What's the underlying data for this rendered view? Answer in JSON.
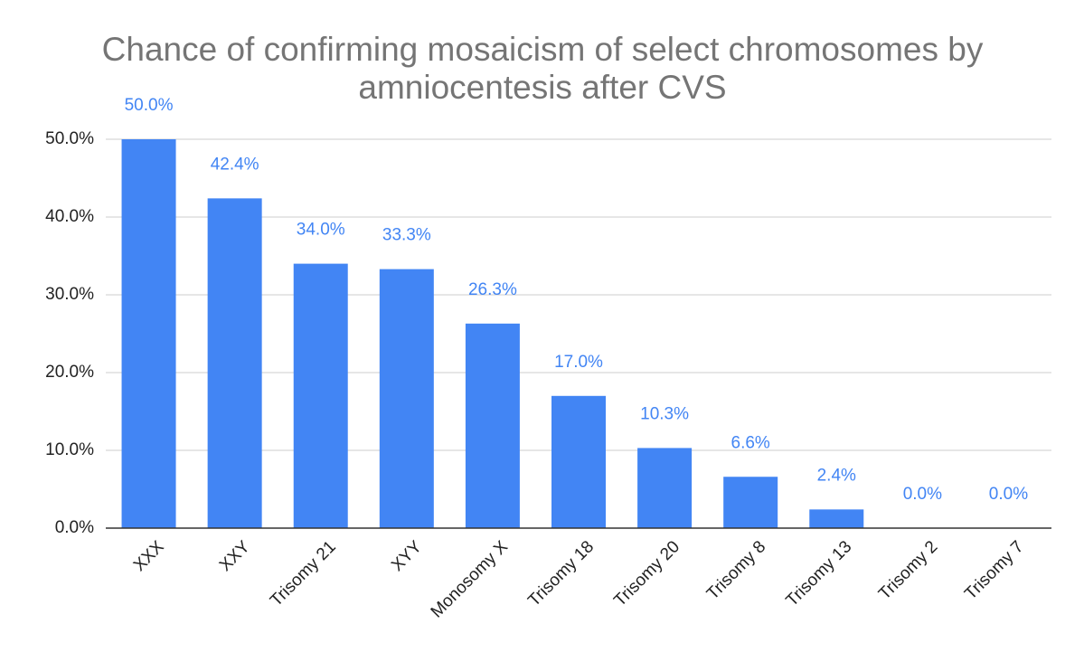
{
  "chart_data": {
    "type": "bar",
    "title": "Chance of confirming mosaicism of select chromosomes by amniocentesis after CVS",
    "categories": [
      "XXX",
      "XXY",
      "Trisomy 21",
      "XYY",
      "Monosomy X",
      "Trisomy 18",
      "Trisomy 20",
      "Trisomy 8",
      "Trisomy 13",
      "Trisomy 2",
      "Trisomy 7"
    ],
    "values": [
      50,
      42.4,
      34,
      33.3,
      26.3,
      17,
      10.3,
      6.6,
      2.4,
      0,
      0
    ],
    "value_labels": [
      "50.0%",
      "42.4%",
      "34.0%",
      "33.3%",
      "26.3%",
      "17.0%",
      "10.3%",
      "6.6%",
      "2.4%",
      "0.0%",
      "0.0%"
    ],
    "color": "#4285f4",
    "ylim": [
      0,
      50
    ],
    "yticks": [
      {
        "value": 0,
        "label": "0.0%"
      },
      {
        "value": 10,
        "label": "10.0%"
      },
      {
        "value": 20,
        "label": "20.0%"
      },
      {
        "value": 30,
        "label": "30.0%"
      },
      {
        "value": 40,
        "label": "40.0%"
      },
      {
        "value": 50,
        "label": "50.0%"
      }
    ],
    "grid": true
  }
}
